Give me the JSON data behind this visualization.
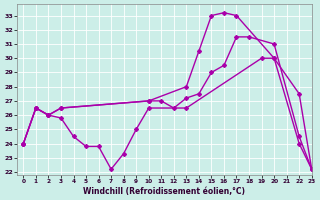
{
  "xlabel": "Windchill (Refroidissement éolien,°C)",
  "xlim": [
    -0.5,
    23
  ],
  "ylim": [
    21.8,
    33.8
  ],
  "yticks": [
    22,
    23,
    24,
    25,
    26,
    27,
    28,
    29,
    30,
    31,
    32,
    33
  ],
  "xticks": [
    0,
    1,
    2,
    3,
    4,
    5,
    6,
    7,
    8,
    9,
    10,
    11,
    12,
    13,
    14,
    15,
    16,
    17,
    18,
    19,
    20,
    21,
    22,
    23
  ],
  "background_color": "#cceee8",
  "line_color": "#aa00aa",
  "line_width": 1.0,
  "marker": "D",
  "marker_size": 2.0,
  "series": [
    {
      "x": [
        0,
        1,
        2,
        3,
        10,
        13,
        14,
        15,
        16,
        17,
        20,
        22,
        23
      ],
      "y": [
        24.0,
        26.5,
        26.0,
        26.5,
        27.0,
        28.0,
        30.5,
        33.0,
        33.2,
        33.0,
        30.0,
        24.0,
        22.2
      ]
    },
    {
      "x": [
        0,
        1,
        2,
        3,
        10,
        11,
        12,
        13,
        14,
        15,
        16,
        17,
        18,
        20,
        22,
        23
      ],
      "y": [
        24.0,
        26.5,
        26.0,
        26.5,
        27.0,
        27.0,
        26.5,
        27.2,
        27.5,
        29.0,
        29.5,
        31.5,
        31.5,
        31.0,
        24.5,
        22.2
      ]
    },
    {
      "x": [
        0,
        1,
        2,
        3,
        4,
        5,
        6,
        7,
        8,
        9,
        10,
        13,
        19,
        20,
        22,
        23
      ],
      "y": [
        24.0,
        26.5,
        26.0,
        25.8,
        24.5,
        23.8,
        23.8,
        22.2,
        23.3,
        25.0,
        26.5,
        26.5,
        30.0,
        30.0,
        27.5,
        22.2
      ]
    }
  ]
}
